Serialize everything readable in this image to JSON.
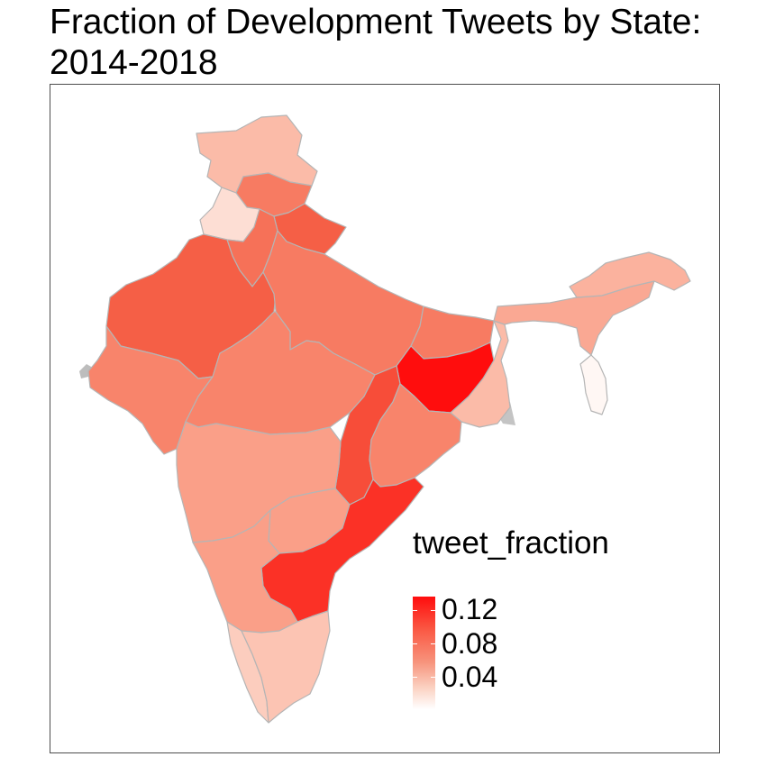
{
  "title_line1": "Fraction of Development Tweets by State:",
  "title_line2": "2014-2018",
  "colors": {
    "low": "#ffffff",
    "high": "#ff0d0d",
    "border": "#b5b5b5",
    "missing": "#bdbdbd"
  },
  "legend": {
    "title": "tweet_fraction",
    "ticks": [
      "0.12",
      "0.08",
      "0.04"
    ],
    "tick_values": [
      0.12,
      0.08,
      0.04
    ],
    "range": [
      0.0,
      0.135
    ]
  },
  "chart_data": {
    "type": "choropleth",
    "variable": "tweet_fraction",
    "regions": [
      {
        "id": "jk",
        "fill": 0.04
      },
      {
        "id": "hp",
        "fill": 0.075
      },
      {
        "id": "pb",
        "fill": 0.02
      },
      {
        "id": "uk",
        "fill": 0.09
      },
      {
        "id": "hr",
        "fill": 0.08
      },
      {
        "id": "rj",
        "fill": 0.09
      },
      {
        "id": "up",
        "fill": 0.075
      },
      {
        "id": "br",
        "fill": 0.075
      },
      {
        "id": "gj",
        "fill": 0.07
      },
      {
        "id": "mp",
        "fill": 0.07
      },
      {
        "id": "cg",
        "fill": 0.1
      },
      {
        "id": "jh",
        "fill": 0.135
      },
      {
        "id": "wb",
        "fill": 0.04
      },
      {
        "id": "or",
        "fill": 0.07
      },
      {
        "id": "mh",
        "fill": 0.055
      },
      {
        "id": "tg",
        "fill": 0.055
      },
      {
        "id": "ap",
        "fill": 0.115
      },
      {
        "id": "ka",
        "fill": 0.055
      },
      {
        "id": "tn",
        "fill": 0.035
      },
      {
        "id": "kl",
        "fill": 0.03
      },
      {
        "id": "ne",
        "fill": 0.045
      },
      {
        "id": "as",
        "fill": 0.05
      },
      {
        "id": "mz",
        "fill": 0.005
      }
    ]
  }
}
